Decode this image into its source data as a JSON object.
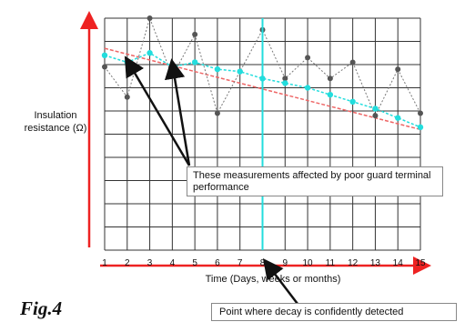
{
  "figure_label": "Fig.4",
  "annotations": {
    "guard": "These measurements affected by poor guard terminal performance",
    "decay": "Point where decay is confidently detected"
  },
  "colors": {
    "axis_arrows": "#ee2222",
    "measured_points": "#555555",
    "fitted_points": "#22dddd",
    "trend_line": "#ee6666",
    "decay_marker": "#22dddd",
    "grid": "#333333"
  },
  "chart_data": {
    "type": "scatter",
    "title": "",
    "xlabel": "Time (Days, weeks or months)",
    "ylabel": "Insulation resistance (Ω)",
    "x": [
      1,
      2,
      3,
      4,
      5,
      6,
      7,
      8,
      9,
      10,
      11,
      12,
      13,
      14,
      15
    ],
    "xlim": [
      1,
      15
    ],
    "ylim": [
      0,
      10
    ],
    "grid": true,
    "series": [
      {
        "role": "measured",
        "values": [
          7.9,
          6.6,
          10.0,
          7.5,
          9.3,
          5.9,
          7.7,
          9.5,
          7.4,
          8.3,
          7.4,
          8.1,
          5.8,
          7.8,
          5.9
        ]
      },
      {
        "role": "fitted",
        "values": [
          8.4,
          8.1,
          8.5,
          7.9,
          8.1,
          7.8,
          7.7,
          7.4,
          7.2,
          7.0,
          6.7,
          6.4,
          6.1,
          5.7,
          5.3
        ]
      }
    ],
    "trend_line": {
      "x": [
        1,
        15
      ],
      "y": [
        8.7,
        5.2
      ]
    },
    "marker_x": 8
  }
}
